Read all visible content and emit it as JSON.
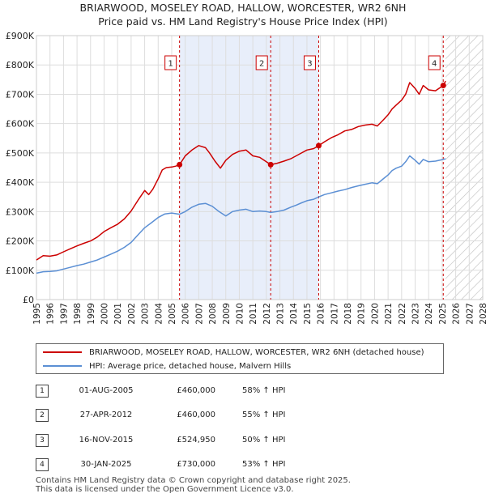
{
  "header": {
    "title_line1": "BRIARWOOD, MOSELEY ROAD, HALLOW, WORCESTER, WR2 6NH",
    "title_line2": "Price paid vs. HM Land Registry's House Price Index (HPI)"
  },
  "chart_data": {
    "type": "line",
    "title": "Price paid vs. HM Land Registry's House Price Index (HPI)",
    "xlabel": "",
    "ylabel": "",
    "xlim": [
      1995,
      2028
    ],
    "ylim": [
      0,
      900000
    ],
    "x_ticks": [
      "1995",
      "1996",
      "1997",
      "1998",
      "1999",
      "2000",
      "2001",
      "2002",
      "2003",
      "2004",
      "2005",
      "2006",
      "2007",
      "2008",
      "2009",
      "2010",
      "2011",
      "2012",
      "2013",
      "2014",
      "2015",
      "2016",
      "2017",
      "2018",
      "2019",
      "2020",
      "2021",
      "2022",
      "2023",
      "2024",
      "2025",
      "2026",
      "2027",
      "2028"
    ],
    "y_ticks": [
      {
        "value": 0,
        "label": "£0"
      },
      {
        "value": 100000,
        "label": "£100K"
      },
      {
        "value": 200000,
        "label": "£200K"
      },
      {
        "value": 300000,
        "label": "£300K"
      },
      {
        "value": 400000,
        "label": "£400K"
      },
      {
        "value": 500000,
        "label": "£500K"
      },
      {
        "value": 600000,
        "label": "£600K"
      },
      {
        "value": 700000,
        "label": "£700K"
      },
      {
        "value": 800000,
        "label": "£800K"
      },
      {
        "value": 900000,
        "label": "£900K"
      }
    ],
    "grid": true,
    "shaded_region": {
      "from": 2005.58,
      "to": 2015.87
    },
    "forecast_region": {
      "from": 2025.25,
      "to": 2028
    },
    "series": [
      {
        "name": "BRIARWOOD, MOSELEY ROAD, HALLOW, WORCESTER, WR2 6NH (detached house)",
        "color": "#cc0000",
        "x": [
          1995,
          1995.5,
          1996,
          1996.5,
          1997,
          1997.5,
          1998,
          1998.5,
          1999,
          1999.5,
          2000,
          2000.5,
          2001,
          2001.5,
          2002,
          2002.5,
          2003,
          2003.3,
          2003.6,
          2004,
          2004.3,
          2004.6,
          2005,
          2005.3,
          2005.58,
          2006,
          2006.5,
          2007,
          2007.5,
          2007.8,
          2008.2,
          2008.6,
          2009,
          2009.5,
          2010,
          2010.5,
          2011,
          2011.5,
          2012,
          2012.32,
          2012.8,
          2013.3,
          2013.8,
          2014.2,
          2014.6,
          2015,
          2015.5,
          2015.87,
          2016.3,
          2016.8,
          2017.3,
          2017.8,
          2018.3,
          2018.8,
          2019.3,
          2019.8,
          2020.2,
          2020.6,
          2021,
          2021.3,
          2021.6,
          2022,
          2022.3,
          2022.6,
          2023,
          2023.3,
          2023.6,
          2024,
          2024.5,
          2025.08,
          2025.25
        ],
        "y": [
          135000,
          150000,
          148000,
          152000,
          163000,
          173000,
          183000,
          192000,
          200000,
          213000,
          232000,
          245000,
          257000,
          275000,
          302000,
          338000,
          372000,
          358000,
          376000,
          412000,
          442000,
          450000,
          452000,
          455000,
          460000,
          490000,
          510000,
          525000,
          518000,
          500000,
          472000,
          448000,
          475000,
          495000,
          506000,
          510000,
          490000,
          485000,
          470000,
          460000,
          465000,
          472000,
          480000,
          490000,
          500000,
          510000,
          515000,
          524950,
          538000,
          552000,
          562000,
          575000,
          580000,
          590000,
          595000,
          598000,
          592000,
          610000,
          630000,
          650000,
          663000,
          680000,
          700000,
          740000,
          720000,
          700000,
          730000,
          715000,
          712000,
          730000,
          745000
        ]
      },
      {
        "name": "HPI: Average price, detached house, Malvern Hills",
        "color": "#5b8fd4",
        "x": [
          1995,
          1995.5,
          1996,
          1996.5,
          1997,
          1997.5,
          1998,
          1998.5,
          1999,
          1999.5,
          2000,
          2000.5,
          2001,
          2001.5,
          2002,
          2002.5,
          2003,
          2003.5,
          2004,
          2004.5,
          2005,
          2005.58,
          2006,
          2006.5,
          2007,
          2007.5,
          2008,
          2008.5,
          2009,
          2009.5,
          2010,
          2010.5,
          2011,
          2011.5,
          2012,
          2012.32,
          2012.8,
          2013.3,
          2013.8,
          2014.2,
          2014.6,
          2015,
          2015.5,
          2015.87,
          2016.3,
          2016.8,
          2017.3,
          2017.8,
          2018.3,
          2018.8,
          2019.3,
          2019.8,
          2020.2,
          2020.6,
          2021,
          2021.3,
          2021.6,
          2022,
          2022.3,
          2022.6,
          2023,
          2023.3,
          2023.6,
          2024,
          2024.5,
          2025.08,
          2025.25
        ],
        "y": [
          90000,
          95000,
          96000,
          98000,
          104000,
          110000,
          116000,
          121000,
          128000,
          135000,
          145000,
          155000,
          165000,
          178000,
          195000,
          220000,
          245000,
          262000,
          280000,
          292000,
          295000,
          291000,
          300000,
          315000,
          325000,
          328000,
          318000,
          300000,
          285000,
          300000,
          305000,
          308000,
          300000,
          302000,
          300000,
          297000,
          300000,
          305000,
          315000,
          322000,
          330000,
          337000,
          342000,
          350000,
          358000,
          364000,
          370000,
          375000,
          382000,
          388000,
          393000,
          398000,
          395000,
          410000,
          425000,
          440000,
          448000,
          455000,
          470000,
          490000,
          475000,
          462000,
          478000,
          470000,
          472000,
          478000,
          480000
        ]
      }
    ],
    "sales": [
      {
        "marker": "1",
        "x": 2005.58,
        "value": 460000
      },
      {
        "marker": "2",
        "x": 2012.32,
        "value": 460000
      },
      {
        "marker": "3",
        "x": 2015.87,
        "value": 524950
      },
      {
        "marker": "4",
        "x": 2025.08,
        "value": 730000
      }
    ]
  },
  "legend": {
    "items": [
      {
        "label": "BRIARWOOD, MOSELEY ROAD, HALLOW, WORCESTER, WR2 6NH (detached house)",
        "color": "#cc0000"
      },
      {
        "label": "HPI: Average price, detached house, Malvern Hills",
        "color": "#5b8fd4"
      }
    ]
  },
  "sales_table": [
    {
      "marker": "1",
      "date": "01-AUG-2005",
      "price": "£460,000",
      "hpi": "58% ↑ HPI"
    },
    {
      "marker": "2",
      "date": "27-APR-2012",
      "price": "£460,000",
      "hpi": "55% ↑ HPI"
    },
    {
      "marker": "3",
      "date": "16-NOV-2015",
      "price": "£524,950",
      "hpi": "50% ↑ HPI"
    },
    {
      "marker": "4",
      "date": "30-JAN-2025",
      "price": "£730,000",
      "hpi": "53% ↑ HPI"
    }
  ],
  "footer": {
    "line1": "Contains HM Land Registry data © Crown copyright and database right 2025.",
    "line2": "This data is licensed under the Open Government Licence v3.0."
  }
}
